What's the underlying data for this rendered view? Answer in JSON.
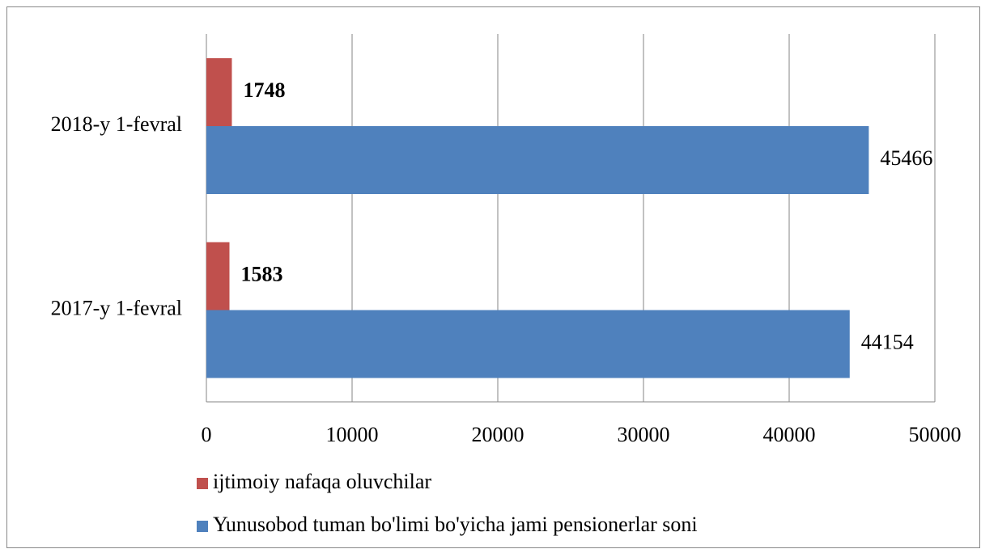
{
  "chart_data": {
    "type": "bar",
    "orientation": "horizontal",
    "categories": [
      "2017-y 1-fevral",
      "2018-y 1-fevral"
    ],
    "series": [
      {
        "name": "ijtimoiy nafaqa oluvchilar",
        "color": "#c0504d",
        "values": [
          1583,
          1748
        ]
      },
      {
        "name": "Yunusobod tuman bo'limi bo'yicha jami pensionerlar soni",
        "color": "#4f81bd",
        "values": [
          44154,
          45466
        ]
      }
    ],
    "xlim": [
      0,
      50000
    ],
    "xticks": [
      0,
      10000,
      20000,
      30000,
      40000,
      50000
    ],
    "grid": true,
    "legend": "bottom"
  }
}
